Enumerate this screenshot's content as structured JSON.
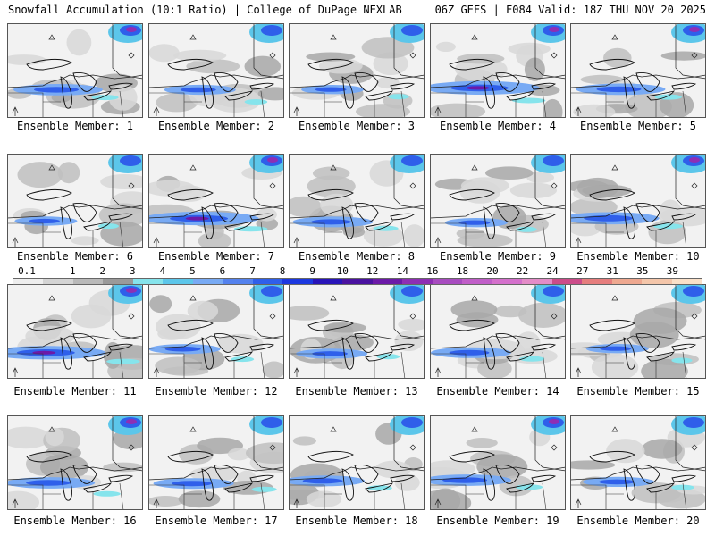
{
  "header": {
    "left": "Snowfall Accumulation (10:1 Ratio) | College of DuPage NEXLAB",
    "right": "06Z GEFS | F084 Valid: 18Z THU NOV 20 2025"
  },
  "legend": {
    "labels": [
      "0.1",
      "1",
      "2",
      "3",
      "4",
      "5",
      "6",
      "7",
      "8",
      "9",
      "10",
      "12",
      "14",
      "16",
      "18",
      "20",
      "22",
      "24",
      "27",
      "31",
      "35",
      "39"
    ],
    "colors": [
      "#eeeeee",
      "#d4d4d4",
      "#b9b9b9",
      "#9a9a9a",
      "#86e4ec",
      "#5cc6ea",
      "#78aaf4",
      "#5482ee",
      "#2f5fea",
      "#1c38e0",
      "#2814b8",
      "#4a12a0",
      "#6c1aa8",
      "#8e2eb4",
      "#a84cc0",
      "#c05ec8",
      "#d470cc",
      "#e48cc8",
      "#cc4c8a",
      "#e67e7e",
      "#eea890",
      "#f4c6aa",
      "#fae0c8"
    ]
  },
  "members": [
    {
      "label": "Ensemble Member: 1",
      "intensity": 0.6
    },
    {
      "label": "Ensemble Member: 2",
      "intensity": 0.4
    },
    {
      "label": "Ensemble Member: 3",
      "intensity": 0.3
    },
    {
      "label": "Ensemble Member: 4",
      "intensity": 0.9
    },
    {
      "label": "Ensemble Member: 5",
      "intensity": 0.6
    },
    {
      "label": "Ensemble Member: 6",
      "intensity": 0.3
    },
    {
      "label": "Ensemble Member: 7",
      "intensity": 0.9
    },
    {
      "label": "Ensemble Member: 8",
      "intensity": 0.5
    },
    {
      "label": "Ensemble Member: 9",
      "intensity": 0.3
    },
    {
      "label": "Ensemble Member: 10",
      "intensity": 0.7
    },
    {
      "label": "Ensemble Member: 11",
      "intensity": 0.9
    },
    {
      "label": "Ensemble Member: 12",
      "intensity": 0.4
    },
    {
      "label": "Ensemble Member: 13",
      "intensity": 0.4
    },
    {
      "label": "Ensemble Member: 14",
      "intensity": 0.5
    },
    {
      "label": "Ensemble Member: 15",
      "intensity": 0.3
    },
    {
      "label": "Ensemble Member: 16",
      "intensity": 0.6
    },
    {
      "label": "Ensemble Member: 17",
      "intensity": 0.5
    },
    {
      "label": "Ensemble Member: 18",
      "intensity": 0.5
    },
    {
      "label": "Ensemble Member: 19",
      "intensity": 0.6
    },
    {
      "label": "Ensemble Member: 20",
      "intensity": 0.4
    }
  ]
}
